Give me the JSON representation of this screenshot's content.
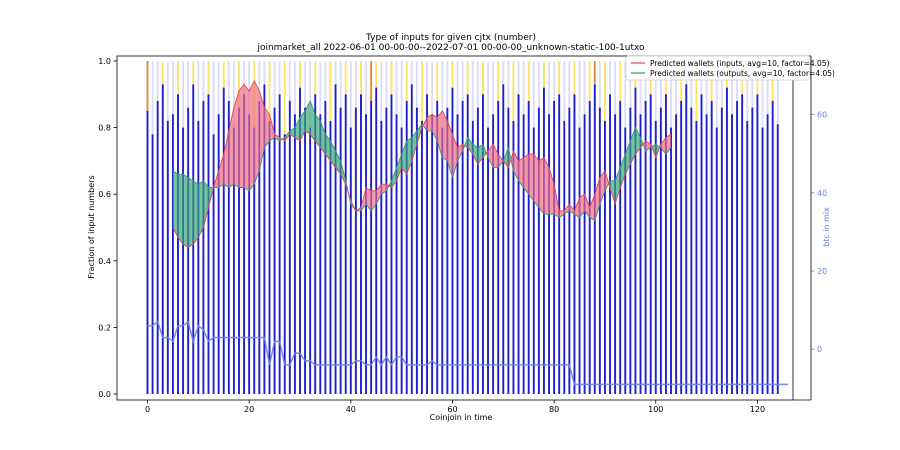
{
  "figure": {
    "title_line1": "Type of inputs for given cjtx (number)",
    "title_line2": "joinmarket_all 2022-06-01 00-00-00--2022-07-01 00-00-00_unknown-static-100-1utxo",
    "xlabel": "Coinjoin in time",
    "ylabel_left": "Fraction of input numbers",
    "ylabel_right": "btc in mix"
  },
  "colors": {
    "bar_blue": "#1f1fd0",
    "bar_yellow": "#fde36a",
    "bar_lavender": "#dcdcf7",
    "bar_orange": "#e08a3c",
    "inputs_fill": "#f06d86",
    "inputs_line": "#e8474a",
    "outputs_fill": "#3aa877",
    "outputs_line": "#3a9a6a",
    "btc_line": "#6b7fe6",
    "right_axis": "#6b7fd7"
  },
  "chart_data": {
    "type": "bar",
    "xlim": [
      -6,
      127
    ],
    "ylim": [
      0,
      1
    ],
    "ylim_right": [
      -13,
      75
    ],
    "xticks": [
      0,
      20,
      40,
      60,
      80,
      100,
      120
    ],
    "yticks": [
      0.0,
      0.2,
      0.4,
      0.6,
      0.8,
      1.0
    ],
    "yticks_right": [
      0,
      20,
      40,
      60
    ],
    "blue_fraction": [
      0.85,
      0.78,
      0.88,
      0.93,
      0.82,
      0.84,
      0.9,
      0.8,
      0.86,
      0.93,
      0.82,
      0.88,
      0.9,
      0.78,
      0.84,
      0.92,
      0.88,
      0.8,
      0.86,
      0.9,
      0.84,
      0.8,
      0.88,
      0.93,
      0.82,
      0.86,
      0.9,
      0.78,
      0.88,
      0.84,
      0.92,
      0.86,
      0.8,
      0.9,
      0.84,
      0.88,
      0.82,
      0.93,
      0.86,
      0.9,
      0.8,
      0.86,
      0.9,
      0.84,
      0.88,
      0.92,
      0.82,
      0.86,
      0.9,
      0.84,
      0.8,
      0.88,
      0.93,
      0.86,
      0.82,
      0.9,
      0.84,
      0.88,
      0.8,
      0.86,
      0.92,
      0.84,
      0.88,
      0.9,
      0.82,
      0.86,
      0.9,
      0.8,
      0.84,
      0.88,
      0.93,
      0.86,
      0.82,
      0.9,
      0.84,
      0.88,
      0.8,
      0.86,
      0.92,
      0.84,
      0.88,
      0.9,
      0.82,
      0.86,
      0.9,
      0.8,
      0.84,
      0.88,
      0.93,
      0.86,
      0.82,
      0.9,
      0.84,
      0.88,
      0.8,
      0.86,
      0.92,
      0.84,
      0.88,
      0.9,
      0.82,
      0.86,
      0.9,
      0.8,
      0.84,
      0.88,
      0.93,
      0.86,
      0.82,
      0.9,
      0.84,
      0.88,
      0.8,
      0.86,
      0.92,
      0.84,
      0.88,
      0.9,
      0.82,
      0.86,
      0.9,
      0.8,
      0.84,
      0.88,
      0.81
    ],
    "series": [
      {
        "name": "Predicted wallets (inputs, avg=10, factor=4.05)",
        "x_start": 5,
        "values": [
          0.5,
          0.47,
          0.45,
          0.44,
          0.45,
          0.47,
          0.5,
          0.56,
          0.62,
          0.67,
          0.72,
          0.79,
          0.86,
          0.91,
          0.93,
          0.91,
          0.94,
          0.91,
          0.86,
          0.84,
          0.78,
          0.77,
          0.76,
          0.78,
          0.77,
          0.76,
          0.79,
          0.78,
          0.76,
          0.74,
          0.72,
          0.7,
          0.68,
          0.66,
          0.63,
          0.58,
          0.55,
          0.56,
          0.62,
          0.61,
          0.61,
          0.63,
          0.63,
          0.62,
          0.64,
          0.68,
          0.66,
          0.7,
          0.75,
          0.8,
          0.83,
          0.84,
          0.83,
          0.85,
          0.82,
          0.78,
          0.74,
          0.75,
          0.74,
          0.72,
          0.69,
          0.71,
          0.73,
          0.75,
          0.72,
          0.7,
          0.68,
          0.73,
          0.7,
          0.71,
          0.72,
          0.72,
          0.7,
          0.71,
          0.68,
          0.63,
          0.55,
          0.55,
          0.57,
          0.55,
          0.59,
          0.6,
          0.56,
          0.6,
          0.65,
          0.67,
          0.62,
          0.57,
          0.62,
          0.66,
          0.69,
          0.72,
          0.74,
          0.76,
          0.75,
          0.71,
          0.75,
          0.77,
          0.78
        ]
      },
      {
        "name": "Predicted wallets (outputs, avg=10, factor=4.05)",
        "x_start": 5,
        "values": [
          0.67,
          0.66,
          0.66,
          0.65,
          0.64,
          0.63,
          0.64,
          0.62,
          0.62,
          0.62,
          0.63,
          0.62,
          0.63,
          0.62,
          0.62,
          0.61,
          0.63,
          0.67,
          0.74,
          0.76,
          0.77,
          0.76,
          0.77,
          0.79,
          0.8,
          0.83,
          0.85,
          0.88,
          0.84,
          0.82,
          0.78,
          0.76,
          0.73,
          0.7,
          0.64,
          0.57,
          0.55,
          0.55,
          0.57,
          0.55,
          0.57,
          0.6,
          0.61,
          0.64,
          0.68,
          0.72,
          0.76,
          0.77,
          0.79,
          0.81,
          0.79,
          0.79,
          0.76,
          0.71,
          0.7,
          0.65,
          0.7,
          0.73,
          0.77,
          0.75,
          0.74,
          0.75,
          0.71,
          0.68,
          0.68,
          0.7,
          0.74,
          0.67,
          0.64,
          0.62,
          0.6,
          0.58,
          0.56,
          0.54,
          0.54,
          0.54,
          0.53,
          0.54,
          0.55,
          0.54,
          0.53,
          0.55,
          0.53,
          0.52,
          0.57,
          0.61,
          0.64,
          0.64,
          0.68,
          0.72,
          0.76,
          0.8,
          0.77,
          0.73,
          0.74,
          0.75,
          0.74,
          0.72,
          0.74
        ]
      },
      {
        "name": "btc in mix",
        "axis": "right",
        "x_start": 0,
        "values": [
          6,
          6,
          7,
          3,
          3,
          2,
          6,
          6,
          7,
          2,
          6,
          5,
          2,
          3,
          3,
          3,
          3,
          3,
          3,
          3,
          3,
          3,
          3,
          3,
          -4,
          2,
          2,
          -4,
          -4,
          -1,
          -1,
          -3,
          -3,
          -4,
          -4,
          -4,
          -4,
          -4,
          -4,
          -4,
          -4,
          -3,
          -3,
          -4,
          -4,
          -2,
          -4,
          -2,
          -4,
          -2,
          -2,
          -4,
          -4,
          -4,
          -4,
          -4,
          -3,
          -4,
          -4,
          -4,
          -4,
          -4,
          -4,
          -4,
          -4,
          -4,
          -4,
          -4,
          -4,
          -4,
          -4,
          -4,
          -4,
          -4,
          -4,
          -4,
          -4,
          -4,
          -4,
          -4,
          -4,
          -4,
          -4,
          -4,
          -9,
          -9,
          -9,
          -9,
          -9,
          -9,
          -9,
          -9,
          -9,
          -9,
          -9,
          -9,
          -9,
          -9,
          -9,
          -9,
          -9,
          -9,
          -9,
          -9,
          -9,
          -9,
          -9,
          -9,
          -9,
          -9,
          -9,
          -9,
          -9,
          -9,
          -9,
          -9,
          -9,
          -9,
          -9,
          -9,
          -9,
          -9,
          -9,
          -9,
          -9,
          -9,
          -9
        ]
      }
    ]
  }
}
